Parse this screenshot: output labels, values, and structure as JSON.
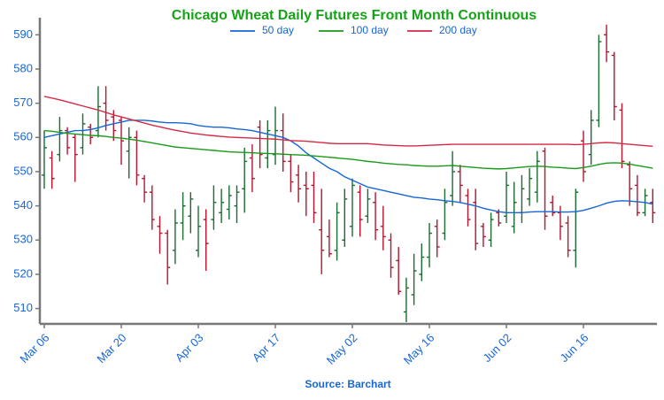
{
  "chart_data": {
    "type": "ohlc",
    "title": "Chicago Wheat Daily Futures Front Month Continuous",
    "source": "Source: Barchart",
    "categories": [
      "Mar 06",
      null,
      null,
      null,
      null,
      null,
      null,
      null,
      null,
      null,
      "Mar 20",
      null,
      null,
      null,
      null,
      null,
      null,
      null,
      null,
      null,
      "Apr 03",
      null,
      null,
      null,
      null,
      null,
      null,
      null,
      null,
      null,
      "Apr 17",
      null,
      null,
      null,
      null,
      null,
      null,
      null,
      null,
      null,
      "May 02",
      null,
      null,
      null,
      null,
      null,
      null,
      null,
      null,
      null,
      "May 16",
      null,
      null,
      null,
      null,
      null,
      null,
      null,
      null,
      null,
      "Jun 02",
      null,
      null,
      null,
      null,
      null,
      null,
      null,
      null,
      null,
      "Jun 16",
      null,
      null,
      null,
      null,
      null,
      null,
      null,
      null,
      null
    ],
    "ohlc": {
      "open": [
        549,
        554,
        555,
        562,
        560,
        557,
        563,
        562,
        570,
        566,
        565,
        556,
        560,
        548,
        544,
        534,
        532,
        527,
        535,
        537,
        527,
        536,
        536,
        538,
        539,
        540,
        545,
        554,
        563,
        554,
        555,
        562,
        553,
        549,
        546,
        546,
        533,
        531,
        527,
        530,
        534,
        544,
        537,
        541,
        534,
        530,
        524,
        509,
        514,
        520,
        525,
        534,
        532,
        543,
        550,
        543,
        541,
        534,
        530,
        538,
        537,
        534,
        538,
        542,
        544,
        556,
        541,
        538,
        535,
        527,
        559,
        555,
        565,
        590,
        584,
        568,
        552,
        546,
        538,
        541
      ],
      "high": [
        562,
        556,
        566,
        563,
        561,
        567,
        564,
        575,
        575,
        568,
        566,
        563,
        562,
        549,
        546,
        537,
        533,
        539,
        544,
        544,
        540,
        539,
        546,
        545,
        546,
        546,
        557,
        558,
        565,
        565,
        569,
        567,
        555,
        552,
        550,
        550,
        545,
        536,
        541,
        545,
        548,
        546,
        545,
        544,
        540,
        532,
        528,
        519,
        526,
        529,
        535,
        536,
        545,
        556,
        552,
        545,
        545,
        535,
        538,
        539,
        550,
        547,
        549,
        551,
        556,
        557,
        543,
        540,
        537,
        545,
        562,
        568,
        590,
        593,
        585,
        570,
        553,
        549,
        545,
        545
      ],
      "low": [
        545,
        545,
        553,
        555,
        547,
        555,
        558,
        560,
        562,
        559,
        552,
        548,
        546,
        541,
        533,
        526,
        517,
        523,
        530,
        532,
        525,
        521,
        533,
        535,
        536,
        535,
        538,
        544,
        551,
        551,
        552,
        550,
        544,
        541,
        537,
        535,
        520,
        525,
        524,
        528,
        531,
        531,
        535,
        530,
        527,
        519,
        514,
        506,
        511,
        518,
        522,
        525,
        530,
        540,
        541,
        534,
        527,
        528,
        528,
        534,
        535,
        532,
        535,
        540,
        541,
        533,
        537,
        530,
        525,
        522,
        547,
        552,
        563,
        582,
        565,
        551,
        540,
        537,
        537,
        535
      ],
      "close": [
        557,
        548,
        562,
        557,
        555,
        564,
        560,
        569,
        565,
        562,
        559,
        560,
        549,
        544,
        536,
        532,
        522,
        535,
        540,
        542,
        534,
        529,
        541,
        541,
        543,
        544,
        553,
        548,
        555,
        562,
        562,
        553,
        547,
        545,
        545,
        538,
        527,
        526,
        538,
        542,
        546,
        536,
        542,
        533,
        531,
        522,
        515,
        516,
        521,
        525,
        532,
        528,
        541,
        550,
        546,
        536,
        529,
        531,
        536,
        535,
        546,
        541,
        545,
        548,
        553,
        537,
        538,
        534,
        527,
        544,
        550,
        565,
        588,
        585,
        569,
        553,
        545,
        538,
        543,
        538
      ]
    },
    "up_color": "#1b6b32",
    "down_color": "#b5162e",
    "series": [
      {
        "name": "50 day",
        "color": "#1666d6",
        "values": [
          560,
          560.5,
          561,
          561.5,
          562,
          562,
          562.3,
          562.8,
          563.5,
          564,
          564.5,
          565,
          565,
          565,
          564.8,
          564.5,
          564.3,
          564.3,
          564.2,
          564,
          563.5,
          563.2,
          563,
          563,
          562.8,
          562.5,
          562.3,
          562,
          561.5,
          561,
          560.5,
          560,
          559,
          557.5,
          555.5,
          554,
          552.5,
          551,
          550,
          548.5,
          547.5,
          546.5,
          545.5,
          545,
          544.5,
          544,
          543.5,
          543,
          542.5,
          542.3,
          542,
          541.8,
          541.5,
          541.3,
          541,
          540.5,
          540,
          539.3,
          538.8,
          538.3,
          538,
          538,
          538,
          538.2,
          538.3,
          538.3,
          538.3,
          538.2,
          538.2,
          538.3,
          538.7,
          539.3,
          540,
          540.8,
          541.3,
          541.5,
          541.4,
          541.2,
          541,
          540.5
        ]
      },
      {
        "name": "100 day",
        "color": "#1a9a1a",
        "values": [
          562,
          561.8,
          561.5,
          561.2,
          561,
          560.8,
          560.6,
          560.5,
          560.3,
          560,
          559.8,
          559.5,
          559.2,
          558.8,
          558.4,
          558,
          557.6,
          557.2,
          557,
          556.8,
          556.6,
          556.4,
          556.2,
          556,
          555.8,
          555.7,
          555.6,
          555.5,
          555.4,
          555.3,
          555.2,
          555.1,
          555,
          554.9,
          554.8,
          554.6,
          554.4,
          554.2,
          554,
          553.8,
          553.6,
          553.3,
          553,
          552.8,
          552.5,
          552.3,
          552.1,
          552,
          551.8,
          551.7,
          551.6,
          551.6,
          551.7,
          551.8,
          551.6,
          551.4,
          551.2,
          551,
          550.9,
          550.8,
          550.9,
          551.1,
          551.3,
          551.5,
          551.6,
          551.5,
          551.3,
          551.2,
          551,
          550.9,
          551.2,
          551.6,
          552.1,
          552.5,
          552.6,
          552.5,
          552.2,
          551.8,
          551.4,
          551
        ]
      },
      {
        "name": "200 day",
        "color": "#d42a44",
        "values": [
          572,
          571.5,
          571,
          570.4,
          569.8,
          569.2,
          568.6,
          568,
          567.3,
          566.6,
          566,
          565.4,
          564.8,
          564.2,
          563.6,
          563.1,
          562.6,
          562.1,
          561.7,
          561.3,
          561,
          560.7,
          560.5,
          560.3,
          560.1,
          560,
          559.9,
          559.8,
          559.7,
          559.6,
          559.5,
          559.3,
          559.1,
          559,
          558.9,
          558.7,
          558.5,
          558.3,
          558.2,
          558.2,
          558.2,
          558.2,
          558.2,
          558,
          557.8,
          557.7,
          557.6,
          557.5,
          557.5,
          557.6,
          557.7,
          557.8,
          557.9,
          558,
          558,
          558,
          558,
          558,
          558,
          558,
          558,
          558,
          558,
          558,
          558,
          558,
          558,
          558,
          558,
          557.9,
          558,
          558.2,
          558.4,
          558.5,
          558.4,
          558.2,
          558,
          557.8,
          557.6,
          557.4
        ]
      }
    ],
    "ylim": [
      505.5,
      595
    ],
    "yticks": [
      510,
      520,
      530,
      540,
      550,
      560,
      570,
      580,
      590
    ],
    "grid": false
  }
}
